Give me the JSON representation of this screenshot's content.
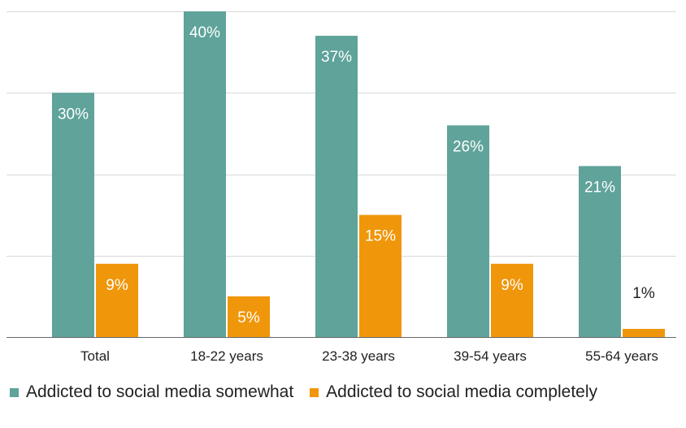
{
  "chart_data": {
    "type": "bar",
    "title": "",
    "xlabel": "",
    "ylabel": "",
    "categories": [
      "Total",
      "18-22 years",
      "23-38 years",
      "39-54 years",
      "55-64 years"
    ],
    "series": [
      {
        "name": "Addicted to social media somewhat",
        "color": "#5fa39a",
        "values": [
          30,
          40,
          37,
          26,
          21
        ],
        "labels": [
          "30%",
          "40%",
          "37%",
          "26%",
          "21%"
        ]
      },
      {
        "name": "Addicted to social media completely",
        "color": "#f0960a",
        "values": [
          9,
          5,
          15,
          9,
          1
        ],
        "labels": [
          "9%",
          "5%",
          "15%",
          "9%",
          "1%"
        ]
      }
    ],
    "ylim": [
      0,
      40
    ],
    "y_gridlines": [
      0,
      10,
      20,
      30,
      40
    ],
    "grid": true,
    "y_tick_labels_visible": false,
    "data_labels": "inside-top",
    "legend_position": "bottom"
  }
}
